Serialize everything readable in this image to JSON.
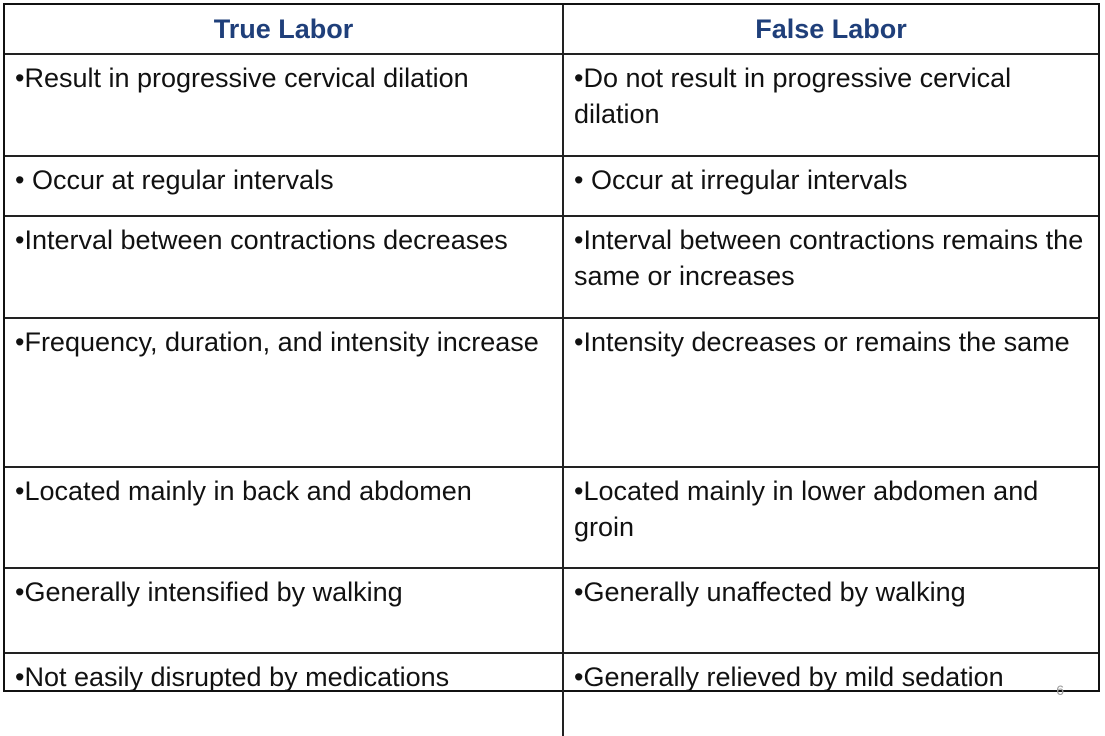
{
  "headers": {
    "true_labor": "True Labor",
    "false_labor": "False Labor"
  },
  "rows": [
    {
      "true_labor": "•Result in progressive cervical dilation",
      "false_labor": "•Do not result in progressive cervical dilation"
    },
    {
      "true_labor": "• Occur at regular intervals",
      "false_labor": "• Occur at irregular intervals"
    },
    {
      "true_labor": "•Interval between contractions decreases",
      "false_labor": "•Interval between contractions remains the same or increases"
    },
    {
      "true_labor": "•Frequency, duration, and intensity increase",
      "false_labor": "•Intensity decreases or remains the same"
    },
    {
      "true_labor": "•Located mainly in back and abdomen",
      "false_labor": "•Located mainly in lower abdomen and groin"
    },
    {
      "true_labor": "•Generally intensified by walking",
      "false_labor": "•Generally unaffected by walking"
    },
    {
      "true_labor": "•Not easily disrupted by medications",
      "false_labor": "•Generally relieved by mild sedation"
    }
  ],
  "slide_number": "6",
  "colors": {
    "header_text": "#1f3f7a",
    "body_text": "#111111",
    "border": "#222222"
  }
}
